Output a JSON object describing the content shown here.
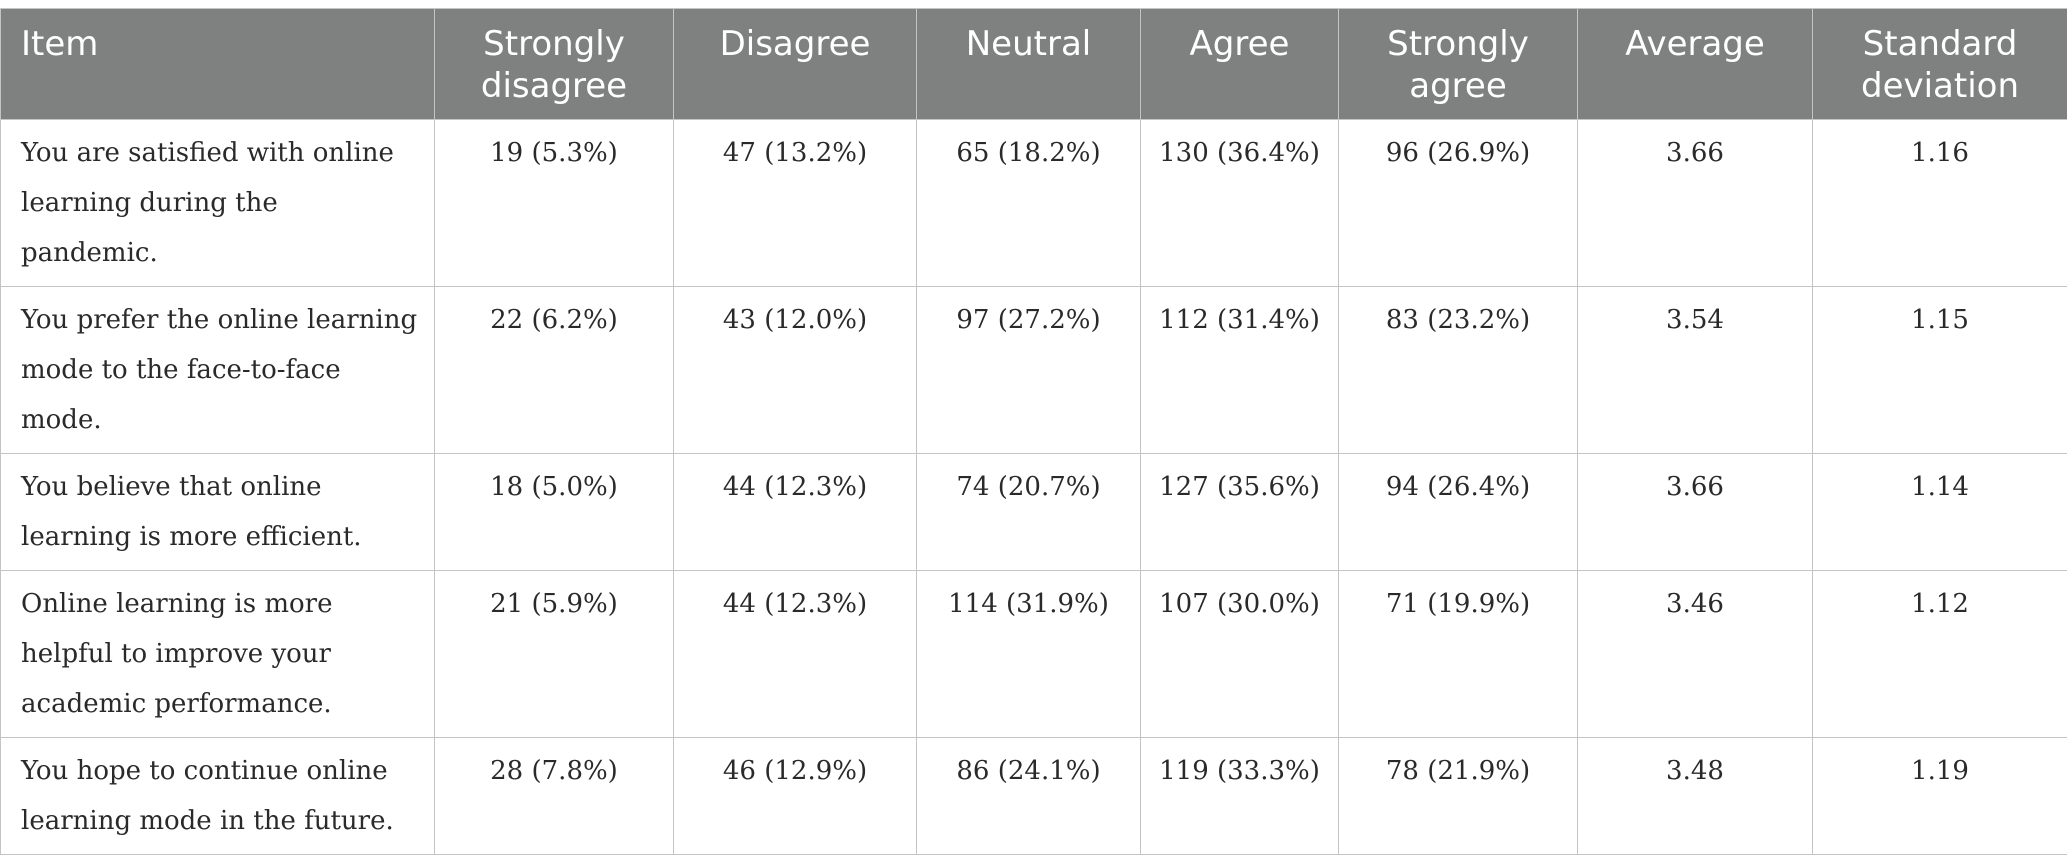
{
  "table": {
    "headers": [
      "Item",
      "Strongly\ndisagree",
      "Disagree",
      "Neutral",
      "Agree",
      "Strongly\nagree",
      "Average",
      "Standard\ndeviation"
    ],
    "rows": [
      {
        "item": "You are satisfied with online learning during the pandemic.",
        "strongly_disagree": "19 (5.3%)",
        "disagree": "47 (13.2%)",
        "neutral": "65 (18.2%)",
        "agree": "130 (36.4%)",
        "strongly_agree": "96 (26.9%)",
        "average": "3.66",
        "sd": "1.16"
      },
      {
        "item": "You prefer the online learning mode to the face-to-face mode.",
        "strongly_disagree": "22 (6.2%)",
        "disagree": "43 (12.0%)",
        "neutral": "97 (27.2%)",
        "agree": "112 (31.4%)",
        "strongly_agree": "83 (23.2%)",
        "average": "3.54",
        "sd": "1.15"
      },
      {
        "item": "You believe that online learning is more efficient.",
        "strongly_disagree": "18 (5.0%)",
        "disagree": "44 (12.3%)",
        "neutral": "74 (20.7%)",
        "agree": "127 (35.6%)",
        "strongly_agree": "94 (26.4%)",
        "average": "3.66",
        "sd": "1.14"
      },
      {
        "item": "Online learning is more helpful to improve your academic performance.",
        "strongly_disagree": "21 (5.9%)",
        "disagree": "44 (12.3%)",
        "neutral": "114 (31.9%)",
        "agree": "107 (30.0%)",
        "strongly_agree": "71 (19.9%)",
        "average": "3.46",
        "sd": "1.12"
      },
      {
        "item": "You hope to continue online learning mode in the future.",
        "strongly_disagree": "28 (7.8%)",
        "disagree": "46 (12.9%)",
        "neutral": "86 (24.1%)",
        "agree": "119 (33.3%)",
        "strongly_agree": "78 (21.9%)",
        "average": "3.48",
        "sd": "1.19"
      }
    ]
  }
}
